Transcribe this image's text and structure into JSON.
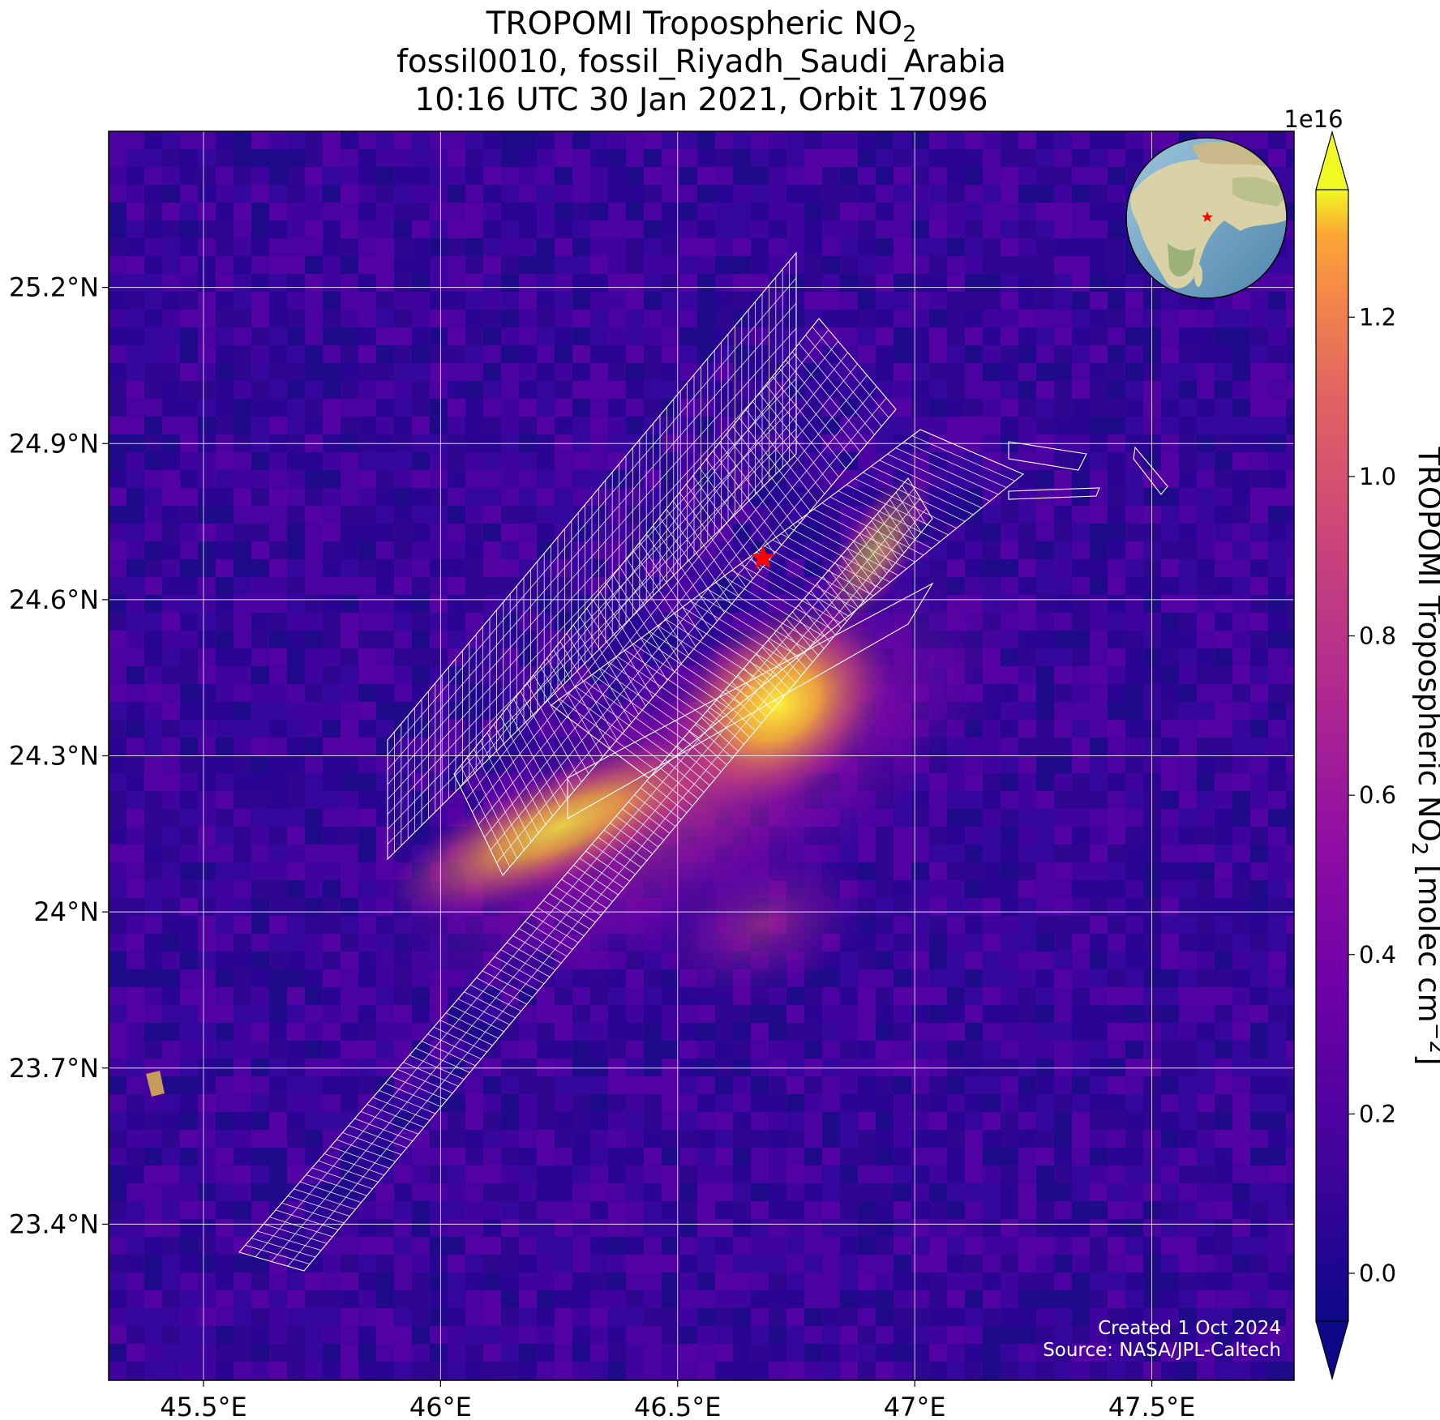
{
  "title": {
    "line1_main": "TROPOMI Tropospheric NO",
    "line1_sub": "2",
    "line2": "fossil0010, fossil_Riyadh_Saudi_Arabia",
    "line3": "10:16 UTC 30 Jan 2021, Orbit 17096"
  },
  "map": {
    "lon_range": [
      45.3,
      47.8
    ],
    "lat_range": [
      23.1,
      25.5
    ],
    "lon_ticks": [
      "45.5°E",
      "46°E",
      "46.5°E",
      "47°E",
      "47.5°E"
    ],
    "lat_ticks": [
      "25.2°N",
      "24.9°N",
      "24.6°N",
      "24.3°N",
      "24°N",
      "23.7°N",
      "23.4°N"
    ],
    "target_marker": {
      "lon": 46.68,
      "lat": 24.68,
      "icon": "red-star-icon",
      "color": "#ff0000"
    },
    "inset": "globe-locator-icon",
    "grid": true,
    "plume_hotspot": {
      "lon": 46.72,
      "lat": 24.43
    }
  },
  "colorbar": {
    "label_main": "TROPOMI Tropospheric NO",
    "label_sub": "2",
    "label_unit": " [molec cm",
    "label_exp": "−2",
    "label_close": "]",
    "scale_label": "1e16",
    "ticks": [
      "0.0",
      "0.2",
      "0.4",
      "0.6",
      "0.8",
      "1.0",
      "1.2"
    ],
    "range": [
      -0.06,
      1.36
    ],
    "colormap": "plasma",
    "extend": "both"
  },
  "credit": {
    "created": "Created 1 Oct 2024",
    "source": "Source: NASA/JPL-Caltech"
  }
}
